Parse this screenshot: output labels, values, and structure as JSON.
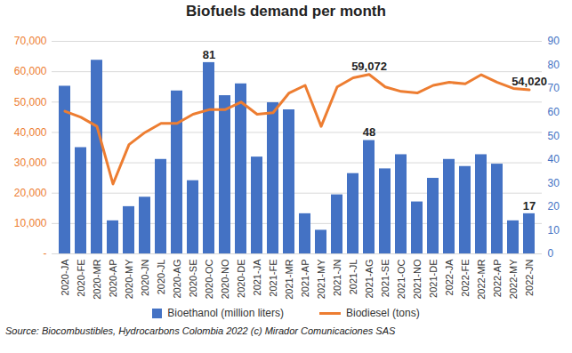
{
  "chart_data": {
    "type": "bar",
    "title": "Biofuels demand per month",
    "caption": "Source:  Biocombustibles, Hydrocarbons Colombia 2022 (c) Mirador Comunicaciones SAS",
    "categories": [
      "2020-JA",
      "2020-FE",
      "2020-MR",
      "2020-AP",
      "2020-MY",
      "2020-JN",
      "2020-JL",
      "2020-AG",
      "2020-SE",
      "2020-OC",
      "2020-NO",
      "2020-DE",
      "2021-JA",
      "2021-FE",
      "2021-MR",
      "2021-AP",
      "2021-MY",
      "2021-JN",
      "2021-JL",
      "2021-AG",
      "2021-SE",
      "2021-OC",
      "2021-NO",
      "2021-DE",
      "2022-JA",
      "2022-FE",
      "2022-MR",
      "2022-AP",
      "2022-MY",
      "2022-JN"
    ],
    "series": [
      {
        "name": "Bioethanol (million liters)",
        "type": "bar",
        "axis": "y2",
        "color": "#4472c4",
        "values": [
          71,
          45,
          82,
          14,
          20,
          24,
          40,
          69,
          31,
          81,
          67,
          72,
          41,
          64,
          61,
          17,
          10,
          25,
          34,
          48,
          36,
          42,
          22,
          32,
          40,
          37,
          42,
          38,
          14,
          17
        ]
      },
      {
        "name": "Biodiesel (tons)",
        "type": "line",
        "color": "#ed7d31",
        "values": [
          47000,
          45000,
          42000,
          23000,
          36000,
          40000,
          43000,
          43000,
          46000,
          47500,
          47500,
          50000,
          46000,
          46500,
          53000,
          55500,
          42000,
          55000,
          58000,
          59072,
          55000,
          53500,
          53000,
          55500,
          56500,
          56000,
          59000,
          56500,
          54500,
          54020
        ]
      }
    ],
    "annotations": [
      {
        "series": "Bioethanol (million liters)",
        "category": "2020-OC",
        "text": "81"
      },
      {
        "series": "Bioethanol (million liters)",
        "category": "2021-AG",
        "text": "48"
      },
      {
        "series": "Bioethanol (million liters)",
        "category": "2022-JN",
        "text": "17"
      },
      {
        "series": "Biodiesel (tons)",
        "category": "2021-AG",
        "text": "59,072"
      },
      {
        "series": "Biodiesel (tons)",
        "category": "2022-JN",
        "text": "54,020"
      }
    ],
    "ylim": [
      0,
      70000
    ],
    "yticks": [
      {
        "value": 0,
        "label": "-"
      },
      {
        "value": 10000,
        "label": "10,000"
      },
      {
        "value": 20000,
        "label": "20,000"
      },
      {
        "value": 30000,
        "label": "30,000"
      },
      {
        "value": 40000,
        "label": "40,000"
      },
      {
        "value": 50000,
        "label": "50,000"
      },
      {
        "value": 60000,
        "label": "60,000"
      },
      {
        "value": 70000,
        "label": "70,000"
      }
    ],
    "y2lim": [
      0,
      90
    ],
    "y2ticks": [
      0,
      10,
      20,
      30,
      40,
      50,
      60,
      70,
      80,
      90
    ],
    "grid": true,
    "legend": "bottom"
  }
}
